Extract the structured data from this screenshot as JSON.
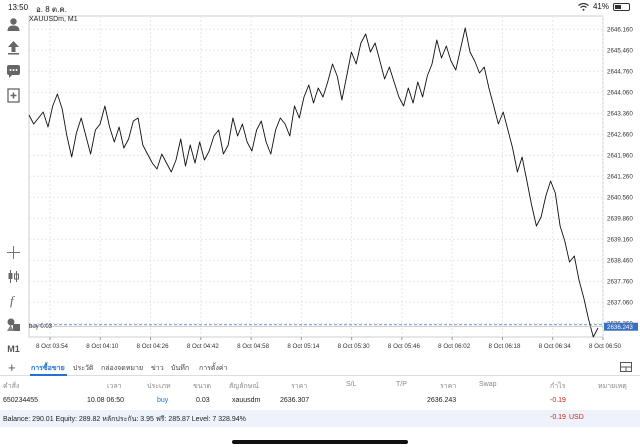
{
  "status_bar": {
    "time": "13:50",
    "date": "อ. 8 ต.ค.",
    "battery": "41%"
  },
  "symbol_label": "XAUUSDm, M1",
  "chart_data": {
    "type": "line",
    "symbol": "XAUUSDm",
    "timeframe": "M1",
    "x_ticks": [
      "8 Oct 03:54",
      "8 Oct 04:10",
      "8 Oct 04:26",
      "8 Oct 04:42",
      "8 Oct 04:58",
      "8 Oct 05:14",
      "8 Oct 05:30",
      "8 Oct 05:46",
      "8 Oct 06:02",
      "8 Oct 06:18",
      "8 Oct 06:34",
      "8 Oct 06:50"
    ],
    "y_ticks": [
      "2646.160",
      "2645.460",
      "2644.760",
      "2644.060",
      "2643.360",
      "2642.660",
      "2641.960",
      "2641.260",
      "2640.560",
      "2639.860",
      "2639.160",
      "2638.460",
      "2637.760",
      "2637.060",
      "2636.360"
    ],
    "ylim": [
      2635.9,
      2646.6
    ],
    "current_price": "2636.243",
    "buy_line_label": "buy 0.03",
    "buy_price": 2636.307,
    "grid": true,
    "prices": [
      2643.3,
      2643.0,
      2643.2,
      2643.4,
      2642.9,
      2643.6,
      2644.0,
      2643.5,
      2642.6,
      2641.9,
      2642.7,
      2643.2,
      2642.6,
      2642.0,
      2642.8,
      2643.0,
      2643.6,
      2642.9,
      2642.4,
      2642.9,
      2642.2,
      2642.5,
      2643.1,
      2643.2,
      2642.3,
      2642.0,
      2641.7,
      2641.5,
      2642.0,
      2641.7,
      2641.4,
      2641.8,
      2642.5,
      2641.6,
      2642.3,
      2641.7,
      2642.4,
      2641.8,
      2642.1,
      2642.6,
      2642.8,
      2642.0,
      2642.3,
      2643.2,
      2642.6,
      2643.0,
      2642.4,
      2642.1,
      2642.8,
      2643.1,
      2642.4,
      2642.0,
      2642.8,
      2643.2,
      2643.0,
      2642.6,
      2643.6,
      2643.2,
      2643.9,
      2644.3,
      2643.7,
      2644.2,
      2643.9,
      2644.4,
      2645.0,
      2644.6,
      2643.8,
      2644.6,
      2645.4,
      2645.0,
      2645.7,
      2646.0,
      2645.4,
      2645.7,
      2645.1,
      2644.5,
      2644.9,
      2644.4,
      2643.9,
      2643.6,
      2644.2,
      2643.7,
      2644.4,
      2643.9,
      2644.6,
      2645.0,
      2645.8,
      2645.2,
      2645.6,
      2645.1,
      2644.8,
      2645.5,
      2646.2,
      2645.4,
      2645.1,
      2644.7,
      2644.9,
      2644.2,
      2643.6,
      2643.0,
      2643.4,
      2642.8,
      2642.2,
      2641.4,
      2641.9,
      2641.1,
      2640.3,
      2639.6,
      2639.9,
      2640.6,
      2641.1,
      2640.7,
      2639.6,
      2639.1,
      2638.4,
      2638.6,
      2637.8,
      2637.2,
      2636.5,
      2635.9,
      2636.2
    ]
  },
  "toolbar": {
    "icons": [
      "person-icon",
      "upload-arrow-icon",
      "chat-icon",
      "plus-document-icon",
      "crosshair-icon",
      "candles-icon",
      "function-icon",
      "objects-icon"
    ],
    "timeframe": "M1"
  },
  "tabs": {
    "items": [
      "การซื้อขาย",
      "ประวัติ",
      "กล่องจดหมาย",
      "ข่าว",
      "บันทึก",
      "การตั้งค่า"
    ]
  },
  "positions": {
    "headers": [
      "คำสั่ง",
      "เวลา",
      "ประเภท",
      "ขนาด",
      "สัญลักษณ์",
      "ราคา",
      "S/L",
      "T/P",
      "ราคา",
      "Swap",
      "กำไร",
      "หมายเหตุ"
    ],
    "row": {
      "order": "650234455",
      "time": "10.08 06:50",
      "type": "buy",
      "size": "0.03",
      "symbol": "xauusdm",
      "open_price": "2636.307",
      "current_price": "2636.243",
      "profit": "-0.19"
    },
    "balance_text": "Balance: 290.01 Equity: 289.82 หลักประกัน: 3.95 ฟรี: 285.87 Level: 7 328.94%",
    "balance_profit": "-0.19",
    "currency": "USD"
  },
  "colors": {
    "accent": "#1e73d4",
    "loss": "#d0251a",
    "chart_line": "#111111",
    "grid": "#e6e6e6"
  }
}
